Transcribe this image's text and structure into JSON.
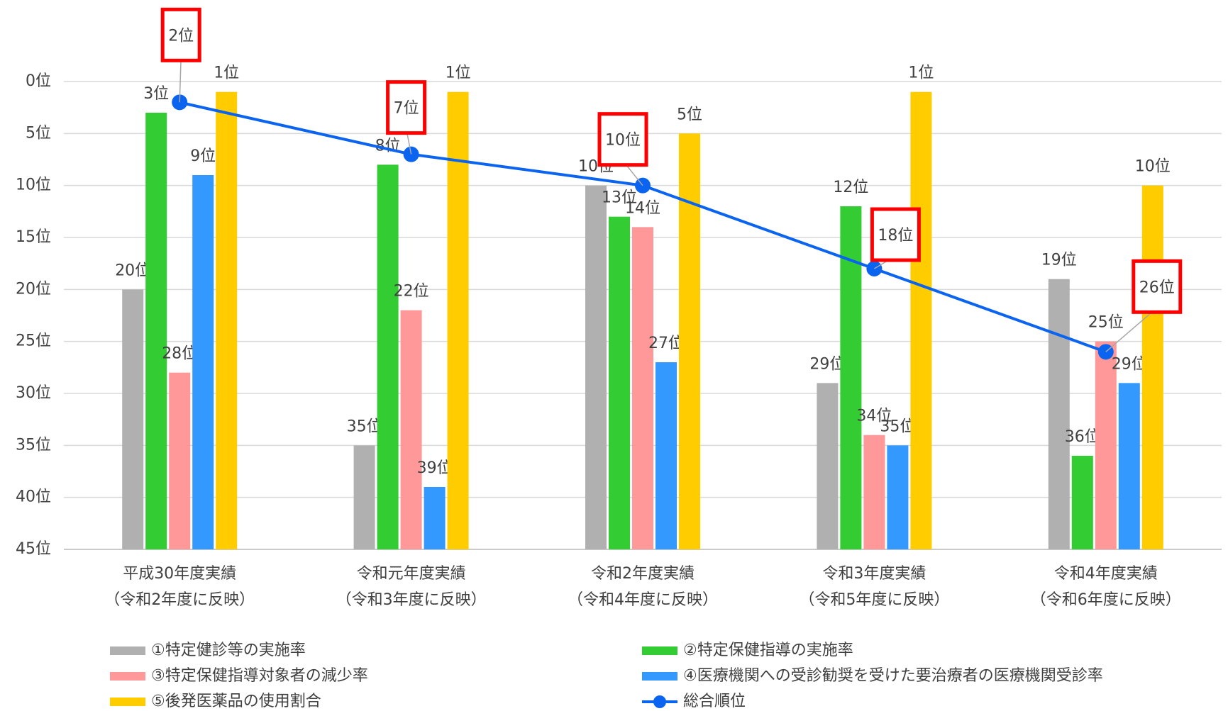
{
  "chart_data": {
    "type": "bar_line",
    "categories": [
      [
        "平成30年度実績",
        "（令和2年度に反映）"
      ],
      [
        "令和元年度実績",
        "（令和3年度に反映）"
      ],
      [
        "令和2年度実績",
        "（令和4年度に反映）"
      ],
      [
        "令和3年度実績",
        "（令和5年度に反映）"
      ],
      [
        "令和4年度実績",
        "（令和6年度に反映）"
      ]
    ],
    "series": [
      {
        "name": "①特定健診等の実施率",
        "color": "#b0b0b0",
        "values": [
          20,
          35,
          10,
          29,
          19
        ],
        "value_labels": [
          "20位",
          "35位",
          "10位",
          "29位",
          "19位"
        ]
      },
      {
        "name": "②特定保健指導の実施率",
        "color": "#33cc33",
        "values": [
          3,
          8,
          13,
          12,
          36
        ],
        "value_labels": [
          "3位",
          "8位",
          "13位",
          "12位",
          "36位"
        ]
      },
      {
        "name": "③特定保健指導対象者の減少率",
        "color": "#ff9999",
        "values": [
          28,
          22,
          14,
          34,
          25
        ],
        "value_labels": [
          "28位",
          "22位",
          "14位",
          "34位",
          "25位"
        ]
      },
      {
        "name": "④医療機関への受診勧奨を受けた要治療者の医療機関受診率",
        "color": "#3399ff",
        "values": [
          9,
          39,
          27,
          35,
          29
        ],
        "value_labels": [
          "9位",
          "39位",
          "27位",
          "35位",
          "29位"
        ]
      },
      {
        "name": "⑤後発医薬品の使用割合",
        "color": "#ffcc00",
        "values": [
          1,
          1,
          5,
          1,
          10
        ],
        "value_labels": [
          "1位",
          "1位",
          "5位",
          "1位",
          "10位"
        ]
      },
      {
        "name": "総合順位",
        "type": "line",
        "color": "#0a64f0",
        "values": [
          2,
          7,
          10,
          18,
          26
        ],
        "value_labels": [
          "2位",
          "7位",
          "10位",
          "18位",
          "26位"
        ],
        "label_color": "#ff0000"
      }
    ],
    "ylim": [
      45,
      0
    ],
    "yticks": [
      {
        "value": 0,
        "label": "0位"
      },
      {
        "value": 5,
        "label": "5位"
      },
      {
        "value": 10,
        "label": "10位"
      },
      {
        "value": 15,
        "label": "15位"
      },
      {
        "value": 20,
        "label": "20位"
      },
      {
        "value": 25,
        "label": "25位"
      },
      {
        "value": 30,
        "label": "30位"
      },
      {
        "value": 35,
        "label": "35位"
      },
      {
        "value": 40,
        "label": "40位"
      },
      {
        "value": 45,
        "label": "45位"
      }
    ],
    "grid": true
  }
}
